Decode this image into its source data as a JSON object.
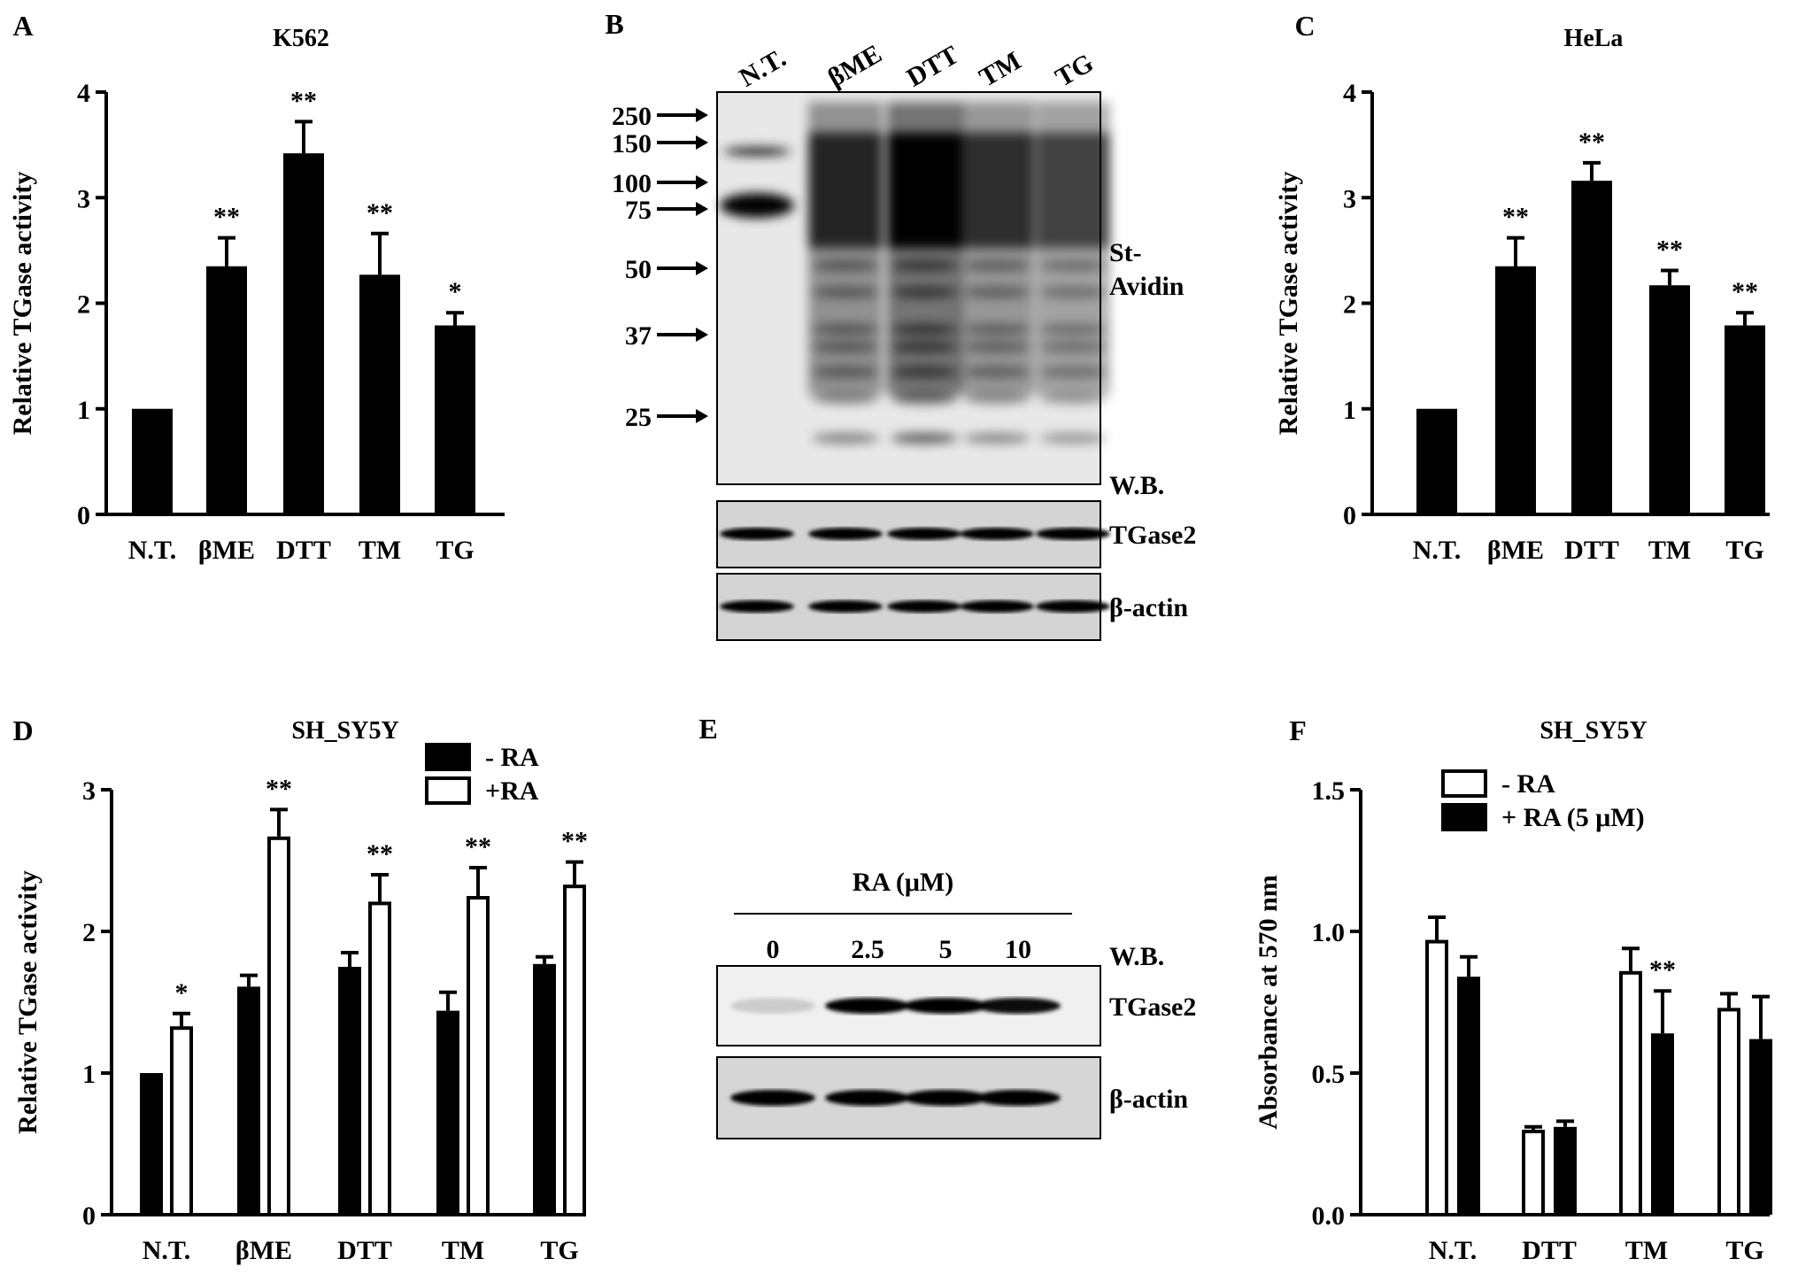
{
  "chart_data": [
    {
      "panel": "A",
      "type": "bar",
      "title": "K562",
      "ylabel": "Relative TGase activity",
      "categories": [
        "N.T.",
        "βME",
        "DTT",
        "TM",
        "TG"
      ],
      "yticks": [
        "0",
        "1",
        "2",
        "3",
        "4"
      ],
      "ylim": [
        0,
        4
      ],
      "series": [
        {
          "values": [
            1.0,
            2.35,
            3.42,
            2.27,
            1.79
          ],
          "errors": [
            0,
            0.27,
            0.3,
            0.39,
            0.12
          ],
          "significance": [
            "",
            "**",
            "**",
            "**",
            "*"
          ],
          "fill": "#000000"
        }
      ]
    },
    {
      "panel": "C",
      "type": "bar",
      "title": "HeLa",
      "ylabel": "Relative TGase activity",
      "categories": [
        "N.T.",
        "βME",
        "DTT",
        "TM",
        "TG"
      ],
      "yticks": [
        "0",
        "1",
        "2",
        "3",
        "4"
      ],
      "ylim": [
        0,
        4
      ],
      "series": [
        {
          "values": [
            1.0,
            2.35,
            3.16,
            2.17,
            1.79
          ],
          "errors": [
            0,
            0.27,
            0.17,
            0.14,
            0.12
          ],
          "significance": [
            "",
            "**",
            "**",
            "**",
            "**"
          ],
          "fill": "#000000"
        }
      ]
    },
    {
      "panel": "D",
      "type": "bar",
      "title": "SH_SY5Y",
      "ylabel": "Relative TGase activity",
      "categories": [
        "N.T.",
        "βME",
        "DTT",
        "TM",
        "TG"
      ],
      "yticks": [
        "0",
        "1",
        "2",
        "3"
      ],
      "ylim": [
        0,
        3
      ],
      "legend_position": "top-right",
      "series": [
        {
          "name": "- RA",
          "values": [
            1.0,
            1.61,
            1.75,
            1.44,
            1.77
          ],
          "errors": [
            0,
            0.08,
            0.1,
            0.13,
            0.05
          ],
          "significance": [
            "",
            "",
            "",
            "",
            ""
          ],
          "fill": "#000000"
        },
        {
          "name": "+RA",
          "values": [
            1.33,
            2.67,
            2.21,
            2.25,
            2.33
          ],
          "errors": [
            0.09,
            0.19,
            0.19,
            0.2,
            0.16
          ],
          "significance": [
            "*",
            "**",
            "**",
            "**",
            "**"
          ],
          "fill": "#ffffff"
        }
      ]
    },
    {
      "panel": "F",
      "type": "bar",
      "title": "SH_SY5Y",
      "ylabel": "Absorbance at 570 nm",
      "categories": [
        "N.T.",
        "DTT",
        "TM",
        "TG"
      ],
      "yticks": [
        "0.0",
        "0.5",
        "1.0",
        "1.5"
      ],
      "ylim": [
        0,
        1.5
      ],
      "legend_position": "top-left",
      "series": [
        {
          "name": "- RA",
          "values": [
            0.97,
            0.3,
            0.86,
            0.73
          ],
          "errors": [
            0.08,
            0.01,
            0.08,
            0.05
          ],
          "significance": [
            "",
            "",
            "",
            ""
          ],
          "fill": "#ffffff"
        },
        {
          "name": "+ RA (5 μM)",
          "values": [
            0.84,
            0.31,
            0.64,
            0.62
          ],
          "errors": [
            0.07,
            0.02,
            0.15,
            0.15
          ],
          "significance": [
            "",
            "",
            "**",
            ""
          ],
          "fill": "#000000"
        }
      ]
    }
  ],
  "blot_b": {
    "panel": "B",
    "lanes": [
      "N.T.",
      "βME",
      "DTT",
      "TM",
      "TG"
    ],
    "markers": [
      "250",
      "150",
      "100",
      "75",
      "50",
      "37",
      "25"
    ],
    "labels": {
      "avidin": "St-\nAvidin",
      "wb": "W.B.",
      "tgase2": "TGase2",
      "actin": "β-actin"
    }
  },
  "blot_e": {
    "panel": "E",
    "treatment": "RA (μM)",
    "lanes": [
      "0",
      "2.5",
      "5",
      "10"
    ],
    "tgase2_intensity": [
      0.15,
      1,
      1,
      0.95
    ],
    "labels": {
      "wb": "W.B.",
      "tgase2": "TGase2",
      "actin": "β-actin"
    }
  }
}
